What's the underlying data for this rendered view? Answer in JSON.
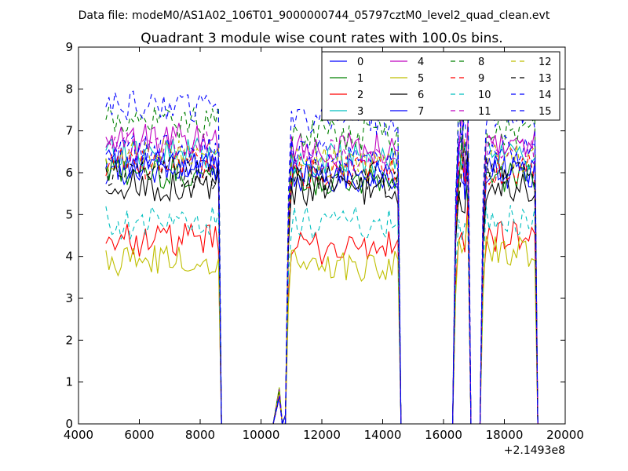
{
  "chart_data": {
    "type": "line",
    "suptitle": "Data file: modeM0/AS1A02_106T01_9000000744_05797cztM0_level2_quad_clean.evt",
    "title": "Quadrant 3 module wise count rates with 100.0s bins.",
    "xlabel": "",
    "ylabel": "",
    "xlim": [
      4000,
      20000
    ],
    "ylim": [
      0,
      9
    ],
    "x_offset_label": "+2.1493e8",
    "xticks": [
      4000,
      6000,
      8000,
      10000,
      12000,
      14000,
      16000,
      18000,
      20000
    ],
    "yticks": [
      0,
      1,
      2,
      3,
      4,
      5,
      6,
      7,
      8,
      9
    ],
    "grid": false,
    "legend_position": "top-right",
    "bin_size_s": 100,
    "segments": [
      {
        "x_start": 4900,
        "x_end": 8600
      },
      {
        "x_start": 10900,
        "x_end": 14500
      },
      {
        "x_start": 16400,
        "x_end": 16800
      },
      {
        "x_start": 17300,
        "x_end": 19000
      }
    ],
    "series": [
      {
        "name": "0",
        "color": "#0000ff",
        "dash": "solid",
        "levels": [
          6.1,
          5.9,
          5.8,
          6.0
        ]
      },
      {
        "name": "1",
        "color": "#008000",
        "dash": "solid",
        "levels": [
          6.0,
          5.8,
          5.9,
          5.9
        ]
      },
      {
        "name": "2",
        "color": "#ff0000",
        "dash": "solid",
        "levels": [
          4.4,
          4.2,
          4.5,
          4.5
        ]
      },
      {
        "name": "3",
        "color": "#00bfbf",
        "dash": "solid",
        "levels": [
          6.5,
          6.3,
          6.4,
          6.4
        ]
      },
      {
        "name": "4",
        "color": "#bf00bf",
        "dash": "solid",
        "levels": [
          6.8,
          6.6,
          6.7,
          6.7
        ]
      },
      {
        "name": "5",
        "color": "#bfbf00",
        "dash": "solid",
        "levels": [
          3.9,
          3.8,
          4.1,
          4.1
        ]
      },
      {
        "name": "6",
        "color": "#000000",
        "dash": "solid",
        "levels": [
          5.7,
          5.6,
          5.8,
          5.7
        ]
      },
      {
        "name": "7",
        "color": "#0000ff",
        "dash": "solid",
        "levels": [
          6.2,
          6.0,
          6.1,
          6.1
        ]
      },
      {
        "name": "8",
        "color": "#008000",
        "dash": "dashed",
        "levels": [
          7.2,
          6.9,
          7.0,
          7.0
        ]
      },
      {
        "name": "9",
        "color": "#ff0000",
        "dash": "dashed",
        "levels": [
          6.2,
          6.0,
          6.1,
          6.1
        ]
      },
      {
        "name": "10",
        "color": "#00bfbf",
        "dash": "dashed",
        "levels": [
          4.8,
          4.8,
          4.9,
          4.9
        ]
      },
      {
        "name": "11",
        "color": "#bf00bf",
        "dash": "dashed",
        "levels": [
          6.6,
          6.4,
          6.5,
          6.5
        ]
      },
      {
        "name": "12",
        "color": "#bfbf00",
        "dash": "dashed",
        "levels": [
          6.4,
          6.2,
          6.3,
          6.3
        ]
      },
      {
        "name": "13",
        "color": "#000000",
        "dash": "dashed",
        "levels": [
          6.0,
          5.9,
          6.0,
          6.0
        ]
      },
      {
        "name": "14",
        "color": "#0000ff",
        "dash": "dashed",
        "levels": [
          7.6,
          7.3,
          7.4,
          7.4
        ]
      },
      {
        "name": "15",
        "color": "#0000ff",
        "dash": "dashed",
        "levels": [
          6.5,
          6.4,
          6.6,
          6.6
        ]
      }
    ]
  }
}
